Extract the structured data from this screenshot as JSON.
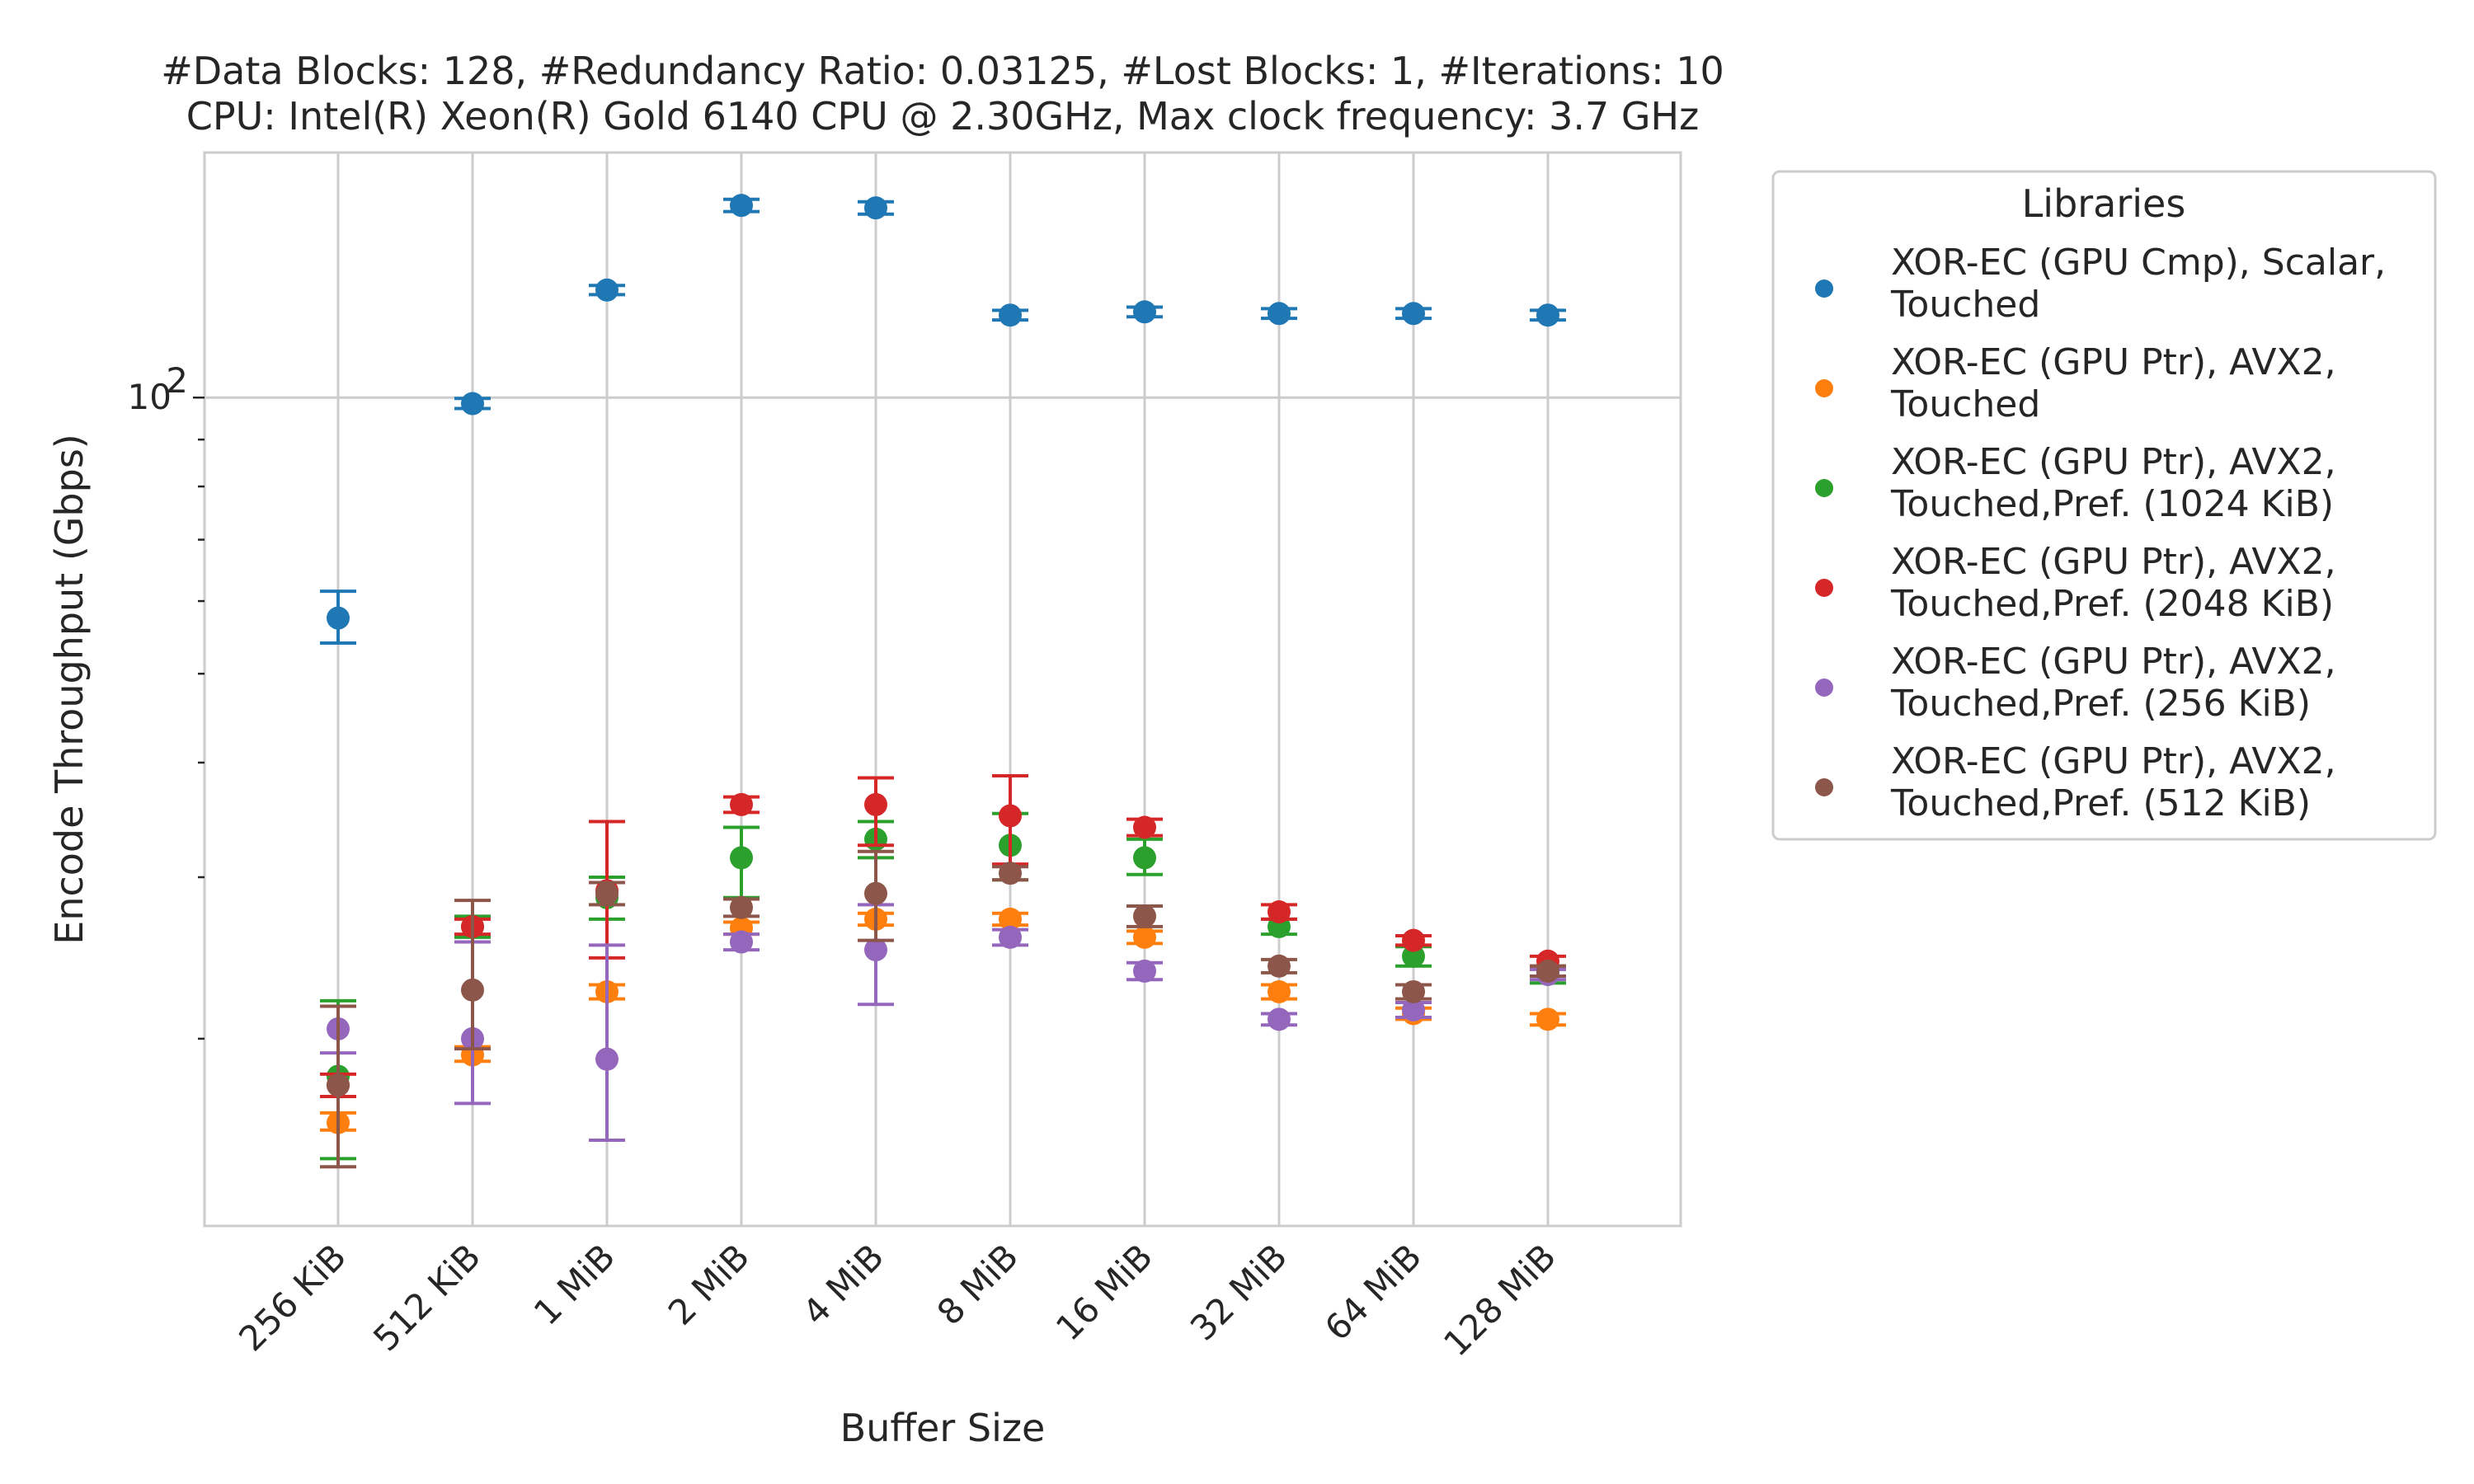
{
  "chart_data": {
    "type": "scatter",
    "title_line1": "#Data Blocks: 128, #Redundancy Ratio: 0.03125, #Lost Blocks: 1, #Iterations: 10",
    "title_line2": "CPU: Intel(R) Xeon(R) Gold 6140 CPU @ 2.30GHz, Max clock frequency: 3.7 GHz",
    "xlabel": "Buffer Size",
    "ylabel": "Encode Throughput (Gbps)",
    "yscale": "log",
    "ylim": [
      12.5,
      185
    ],
    "y_tick_label": "10",
    "y_tick_label_exp": "2",
    "y_tick_value": 100,
    "grid": true,
    "legend_title": "Libraries",
    "legend_position": "outside-right",
    "categories": [
      "256 KiB",
      "512 KiB",
      "1 MiB",
      "2 MiB",
      "4 MiB",
      "8 MiB",
      "16 MiB",
      "32 MiB",
      "64 MiB",
      "128 MiB"
    ],
    "series": [
      {
        "name_line1": "XOR-EC (GPU Cmp), Scalar,",
        "name_line2": "Touched",
        "color": "#1f77b4",
        "values": [
          57.5,
          98.5,
          131,
          162,
          161,
          123,
          124,
          123.5,
          123.5,
          123
        ],
        "err_low": [
          54,
          97.3,
          129.5,
          159.5,
          158.5,
          121.5,
          122.5,
          122,
          122,
          121.5
        ],
        "err_high": [
          61.5,
          99.8,
          132.5,
          164.5,
          163.5,
          124.5,
          125.5,
          125,
          125,
          124.5
        ]
      },
      {
        "name_line1": "XOR-EC (GPU Ptr), AVX2,",
        "name_line2": "Touched",
        "color": "#ff7f0e",
        "values": [
          16.2,
          19.2,
          22.5,
          26.4,
          27,
          27,
          25.8,
          22.5,
          21.3,
          21
        ],
        "err_low": [
          15.9,
          18.9,
          22.1,
          26,
          26.6,
          26.6,
          25.4,
          22.1,
          21,
          20.7
        ],
        "err_high": [
          16.6,
          19.6,
          22.9,
          26.8,
          27.4,
          27.4,
          26.2,
          22.9,
          21.6,
          21.3
        ]
      },
      {
        "name_line1": "XOR-EC (GPU Ptr), AVX2,",
        "name_line2": "Touched,Pref. (1024 KiB)",
        "color": "#2ca02c",
        "values": [
          18.2,
          26.5,
          28.5,
          31.5,
          33,
          32.5,
          31.5,
          26.5,
          24.6,
          23.5
        ],
        "err_low": [
          14.8,
          25.8,
          27,
          28.5,
          31.5,
          29.8,
          30.2,
          26,
          24,
          23
        ],
        "err_high": [
          22,
          27.2,
          30,
          34,
          34.5,
          35.2,
          33,
          27,
          25.2,
          24
        ]
      },
      {
        "name_line1": "XOR-EC (GPU Ptr), AVX2,",
        "name_line2": "Touched,Pref. (2048 KiB)",
        "color": "#d62728",
        "values": [
          17.8,
          26.5,
          29,
          36,
          36,
          35,
          34,
          27.5,
          25.6,
          24.3
        ],
        "err_low": [
          17.3,
          26,
          24.5,
          35.3,
          32.5,
          31,
          33.3,
          27,
          25.3,
          24
        ],
        "err_high": [
          18.3,
          27,
          34.5,
          36.7,
          38.5,
          38.7,
          34.7,
          28,
          25.9,
          24.6
        ]
      },
      {
        "name_line1": "XOR-EC (GPU Ptr), AVX2,",
        "name_line2": "Touched,Pref. (256 KiB)",
        "color": "#9467bd",
        "values": [
          20.5,
          20,
          19,
          25.5,
          25,
          25.8,
          23.7,
          21,
          21.5,
          23.5
        ],
        "err_low": [
          19.3,
          17,
          15.5,
          25,
          21.8,
          25.3,
          23.2,
          20.7,
          21.1,
          23.2
        ],
        "err_high": [
          21.7,
          25.5,
          25.3,
          26,
          28,
          26.3,
          24.2,
          21.3,
          21.9,
          23.8
        ]
      },
      {
        "name_line1": "XOR-EC (GPU Ptr), AVX2,",
        "name_line2": "Touched,Pref. (512 KiB)",
        "color": "#8c564b",
        "values": [
          17.8,
          22.6,
          28.8,
          27.8,
          28.8,
          30.3,
          27.2,
          24,
          22.5,
          23.7
        ],
        "err_low": [
          14.5,
          19.5,
          28,
          27.2,
          25.6,
          29.8,
          26.5,
          23.6,
          22.1,
          23.4
        ],
        "err_high": [
          21.7,
          28.3,
          29.6,
          28.4,
          32,
          30.8,
          27.9,
          24.4,
          22.9,
          24
        ]
      }
    ]
  }
}
